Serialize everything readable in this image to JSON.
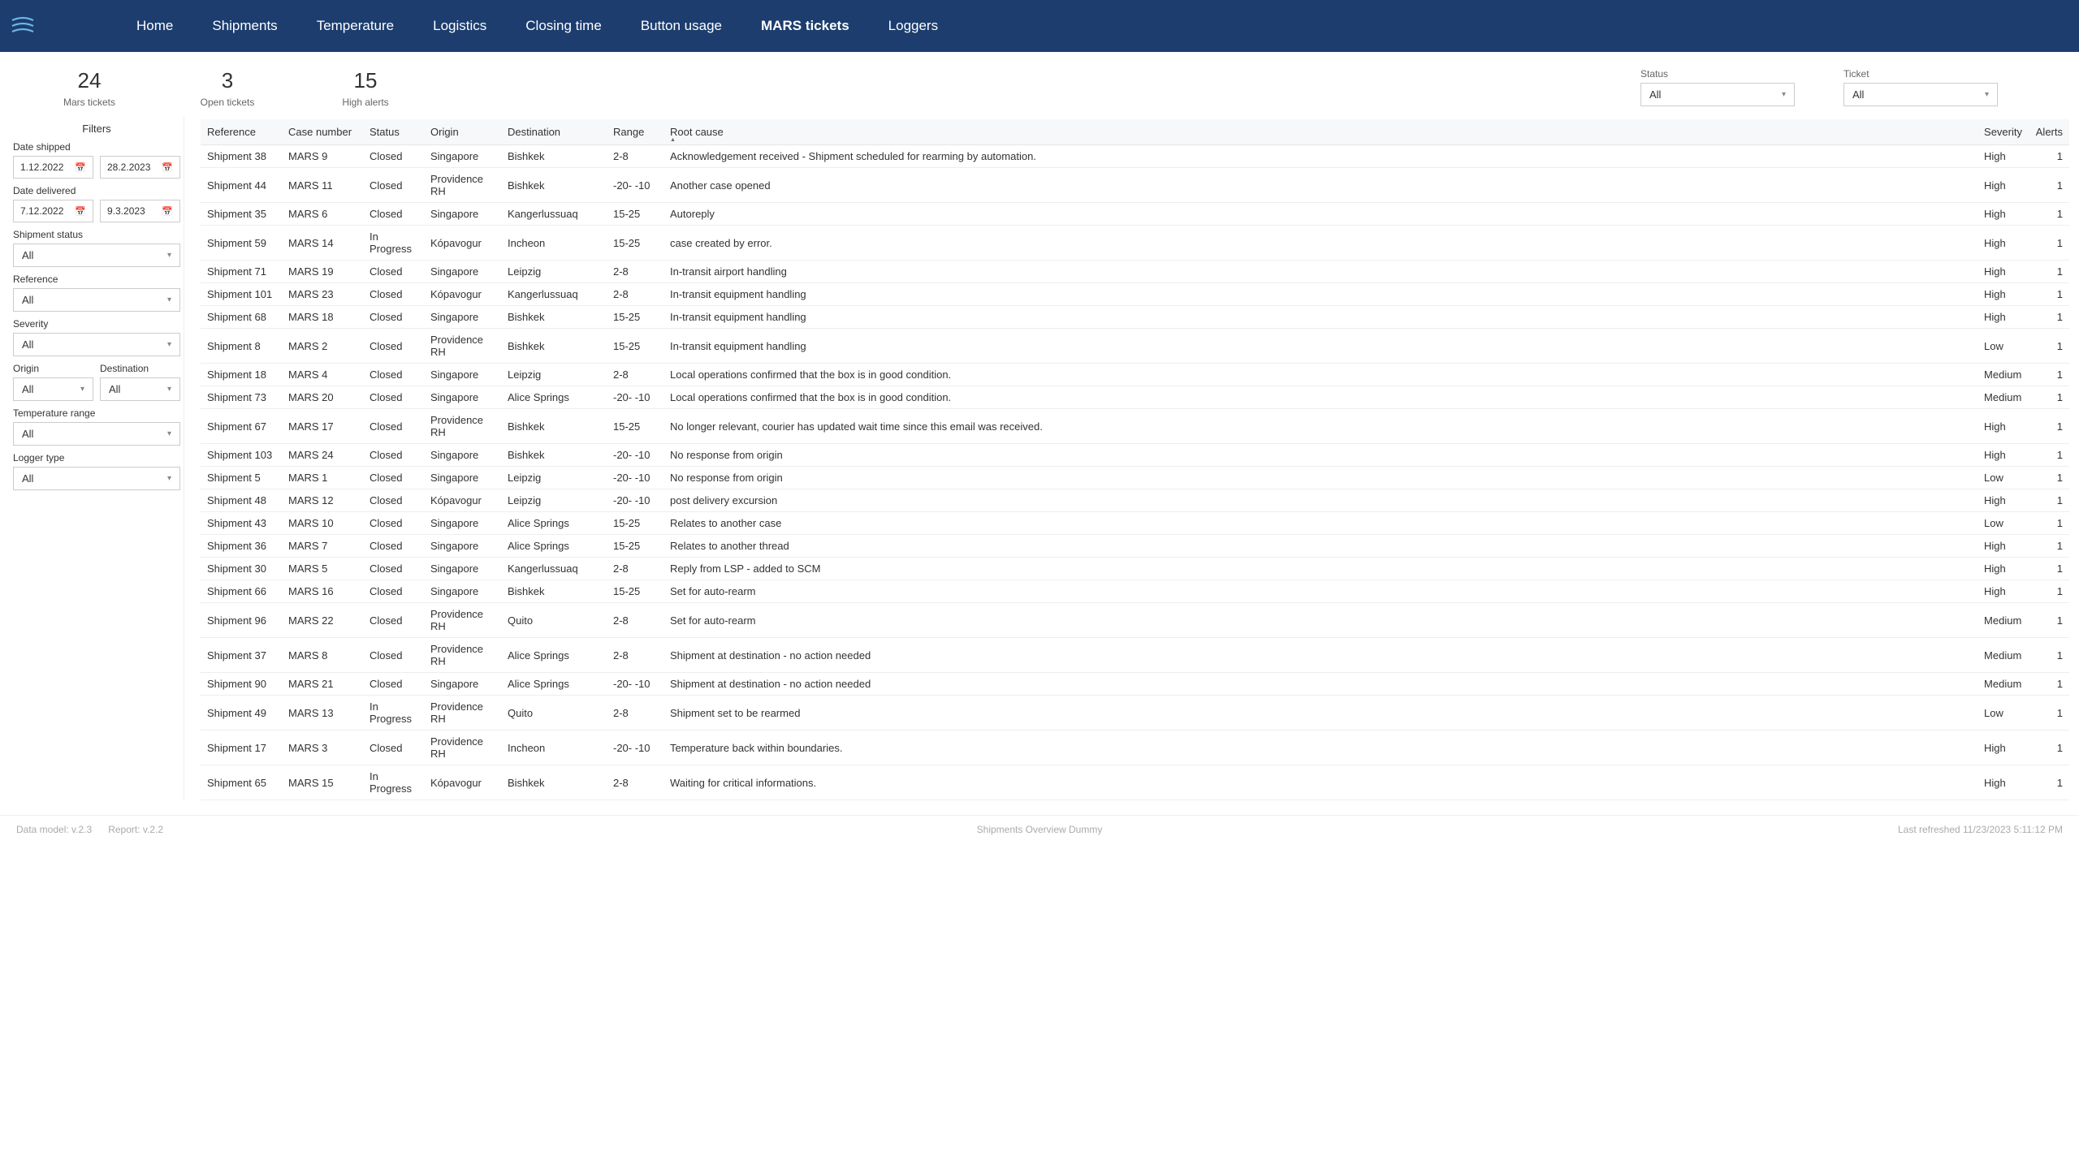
{
  "nav": {
    "items": [
      "Home",
      "Shipments",
      "Temperature",
      "Logistics",
      "Closing time",
      "Button usage",
      "MARS tickets",
      "Loggers"
    ],
    "active": "MARS tickets"
  },
  "cards": [
    {
      "value": "24",
      "label": "Mars tickets"
    },
    {
      "value": "3",
      "label": "Open tickets"
    },
    {
      "value": "15",
      "label": "High alerts"
    }
  ],
  "topFilters": {
    "status": {
      "label": "Status",
      "value": "All"
    },
    "ticket": {
      "label": "Ticket",
      "value": "All"
    }
  },
  "sidebar": {
    "title": "Filters",
    "dateShipped": {
      "label": "Date shipped",
      "from": "1.12.2022",
      "to": "28.2.2023"
    },
    "dateDelivered": {
      "label": "Date delivered",
      "from": "7.12.2022",
      "to": "9.3.2023"
    },
    "shipmentStatus": {
      "label": "Shipment status",
      "value": "All"
    },
    "reference": {
      "label": "Reference",
      "value": "All"
    },
    "severity": {
      "label": "Severity",
      "value": "All"
    },
    "origin": {
      "label": "Origin",
      "value": "All"
    },
    "destination": {
      "label": "Destination",
      "value": "All"
    },
    "tempRange": {
      "label": "Temperature range",
      "value": "All"
    },
    "loggerType": {
      "label": "Logger type",
      "value": "All"
    }
  },
  "table": {
    "columns": [
      "Reference",
      "Case number",
      "Status",
      "Origin",
      "Destination",
      "Range",
      "Root cause",
      "Severity",
      "Alerts"
    ],
    "sortColumn": "Root cause",
    "rows": [
      [
        "Shipment 38",
        "MARS 9",
        "Closed",
        "Singapore",
        "Bishkek",
        "2-8",
        "Acknowledgement received - Shipment scheduled for rearming by automation.",
        "High",
        "1"
      ],
      [
        "Shipment 44",
        "MARS 11",
        "Closed",
        "Providence RH",
        "Bishkek",
        "-20- -10",
        "Another case opened",
        "High",
        "1"
      ],
      [
        "Shipment 35",
        "MARS 6",
        "Closed",
        "Singapore",
        "Kangerlussuaq",
        "15-25",
        "Autoreply",
        "High",
        "1"
      ],
      [
        "Shipment 59",
        "MARS 14",
        "In Progress",
        "Kópavogur",
        "Incheon",
        "15-25",
        "case created by error.",
        "High",
        "1"
      ],
      [
        "Shipment 71",
        "MARS 19",
        "Closed",
        "Singapore",
        "Leipzig",
        "2-8",
        "In-transit airport handling",
        "High",
        "1"
      ],
      [
        "Shipment 101",
        "MARS 23",
        "Closed",
        "Kópavogur",
        "Kangerlussuaq",
        "2-8",
        "In-transit equipment handling",
        "High",
        "1"
      ],
      [
        "Shipment 68",
        "MARS 18",
        "Closed",
        "Singapore",
        "Bishkek",
        "15-25",
        "In-transit equipment handling",
        "High",
        "1"
      ],
      [
        "Shipment 8",
        "MARS 2",
        "Closed",
        "Providence RH",
        "Bishkek",
        "15-25",
        "In-transit equipment handling",
        "Low",
        "1"
      ],
      [
        "Shipment 18",
        "MARS 4",
        "Closed",
        "Singapore",
        "Leipzig",
        "2-8",
        "Local operations confirmed that the box is in good condition.",
        "Medium",
        "1"
      ],
      [
        "Shipment 73",
        "MARS 20",
        "Closed",
        "Singapore",
        "Alice Springs",
        "-20- -10",
        "Local operations confirmed that the box is in good condition.",
        "Medium",
        "1"
      ],
      [
        "Shipment 67",
        "MARS 17",
        "Closed",
        "Providence RH",
        "Bishkek",
        "15-25",
        "No longer relevant, courier has updated wait time since this email was received.",
        "High",
        "1"
      ],
      [
        "Shipment 103",
        "MARS 24",
        "Closed",
        "Singapore",
        "Bishkek",
        "-20- -10",
        "No response from origin",
        "High",
        "1"
      ],
      [
        "Shipment 5",
        "MARS 1",
        "Closed",
        "Singapore",
        "Leipzig",
        "-20- -10",
        "No response from origin",
        "Low",
        "1"
      ],
      [
        "Shipment 48",
        "MARS 12",
        "Closed",
        "Kópavogur",
        "Leipzig",
        "-20- -10",
        "post delivery excursion",
        "High",
        "1"
      ],
      [
        "Shipment 43",
        "MARS 10",
        "Closed",
        "Singapore",
        "Alice Springs",
        "15-25",
        "Relates to another case",
        "Low",
        "1"
      ],
      [
        "Shipment 36",
        "MARS 7",
        "Closed",
        "Singapore",
        "Alice Springs",
        "15-25",
        "Relates to another thread",
        "High",
        "1"
      ],
      [
        "Shipment 30",
        "MARS 5",
        "Closed",
        "Singapore",
        "Kangerlussuaq",
        "2-8",
        "Reply from LSP - added to SCM",
        "High",
        "1"
      ],
      [
        "Shipment 66",
        "MARS 16",
        "Closed",
        "Singapore",
        "Bishkek",
        "15-25",
        "Set for auto-rearm",
        "High",
        "1"
      ],
      [
        "Shipment 96",
        "MARS 22",
        "Closed",
        "Providence RH",
        "Quito",
        "2-8",
        "Set for auto-rearm",
        "Medium",
        "1"
      ],
      [
        "Shipment 37",
        "MARS 8",
        "Closed",
        "Providence RH",
        "Alice Springs",
        "2-8",
        "Shipment at destination - no action needed",
        "Medium",
        "1"
      ],
      [
        "Shipment 90",
        "MARS 21",
        "Closed",
        "Singapore",
        "Alice Springs",
        "-20- -10",
        "Shipment at destination - no action needed",
        "Medium",
        "1"
      ],
      [
        "Shipment 49",
        "MARS 13",
        "In Progress",
        "Providence RH",
        "Quito",
        "2-8",
        "Shipment set to be rearmed",
        "Low",
        "1"
      ],
      [
        "Shipment 17",
        "MARS 3",
        "Closed",
        "Providence RH",
        "Incheon",
        "-20- -10",
        "Temperature back within boundaries.",
        "High",
        "1"
      ],
      [
        "Shipment 65",
        "MARS 15",
        "In Progress",
        "Kópavogur",
        "Bishkek",
        "2-8",
        "Waiting for critical informations.",
        "High",
        "1"
      ]
    ]
  },
  "footer": {
    "left1": "Data model: v.2.3",
    "left2": "Report: v.2.2",
    "center": "Shipments Overview Dummy",
    "right": "Last refreshed 11/23/2023 5:11:12 PM"
  }
}
